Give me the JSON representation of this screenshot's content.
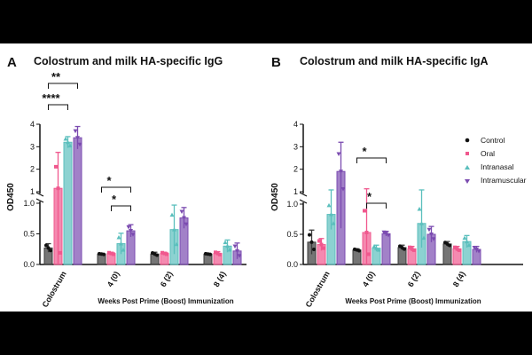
{
  "figure": {
    "panels": [
      {
        "letter": "A",
        "title": "Colostrum and milk HA-specific IgG"
      },
      {
        "letter": "B",
        "title": "Colostrum and milk HA-specific IgA"
      }
    ]
  },
  "colors": {
    "Control": "#3b3b3b",
    "Oral": "#f0588e",
    "Intranasal": "#5bbfbd",
    "Intramuscular": "#7b4bb0"
  },
  "chart_data": [
    {
      "type": "bar",
      "title": "Colostrum and milk HA-specific IgG",
      "ylabel": "OD450",
      "xlabel": "Weeks Post Prime (Boost) Immunization",
      "categories": [
        "Colostrum",
        "4 (0)",
        "6 (2)",
        "8 (4)"
      ],
      "y_broken_axis": {
        "lower": [
          0,
          1
        ],
        "upper": [
          1,
          4
        ],
        "lower_ticks": [
          "0.0",
          "0.5",
          "1.0"
        ],
        "upper_ticks": [
          "1",
          "2",
          "3",
          "4"
        ]
      },
      "series": [
        {
          "name": "Control",
          "values": [
            0.27,
            0.17,
            0.17,
            0.17
          ],
          "errors": [
            0.07,
            0.01,
            0.03,
            0.01
          ]
        },
        {
          "name": "Oral",
          "values": [
            1.15,
            0.18,
            0.18,
            0.18
          ],
          "errors": [
            1.6,
            0.02,
            0.02,
            0.03
          ]
        },
        {
          "name": "Intranasal",
          "values": [
            3.2,
            0.34,
            0.57,
            0.3
          ],
          "errors": [
            0.25,
            0.17,
            0.4,
            0.1
          ]
        },
        {
          "name": "Intramuscular",
          "values": [
            3.4,
            0.55,
            0.76,
            0.22
          ],
          "errors": [
            0.5,
            0.1,
            0.17,
            0.13
          ]
        }
      ],
      "significance": [
        {
          "label": "**",
          "from": "Control",
          "to": "Intramuscular",
          "category": "Colostrum"
        },
        {
          "label": "****",
          "from": "Control",
          "to": "Intranasal",
          "category": "Colostrum"
        },
        {
          "label": "*",
          "from": "Control",
          "to": "Intramuscular",
          "category": "4 (0)"
        },
        {
          "label": "*",
          "from": "Oral",
          "to": "Intramuscular",
          "category": "4 (0)"
        }
      ]
    },
    {
      "type": "bar",
      "title": "Colostrum and milk HA-specific IgA",
      "ylabel": "OD450",
      "xlabel": "Weeks Post Prime (Boost) Immunization",
      "categories": [
        "Colostrum",
        "4 (0)",
        "6 (2)",
        "8 (4)"
      ],
      "y_broken_axis": {
        "lower": [
          0,
          1
        ],
        "upper": [
          1,
          4
        ],
        "lower_ticks": [
          "0.0",
          "0.5",
          "1.0"
        ],
        "upper_ticks": [
          "1",
          "2",
          "3",
          "4"
        ]
      },
      "series": [
        {
          "name": "Control",
          "values": [
            0.37,
            0.24,
            0.28,
            0.34
          ],
          "errors": [
            0.2,
            0.02,
            0.04,
            0.04
          ]
        },
        {
          "name": "Oral",
          "values": [
            0.33,
            0.53,
            0.26,
            0.26
          ],
          "errors": [
            0.1,
            0.6,
            0.04,
            0.04
          ]
        },
        {
          "name": "Intranasal",
          "values": [
            0.83,
            0.27,
            0.68,
            0.38
          ],
          "errors": [
            0.25,
            0.05,
            0.4,
            0.1
          ]
        },
        {
          "name": "Intramuscular",
          "values": [
            1.9,
            0.51,
            0.5,
            0.25
          ],
          "errors": [
            1.3,
            0.04,
            0.13,
            0.05
          ]
        }
      ],
      "significance": [
        {
          "label": "*",
          "from": "Control",
          "to": "Intramuscular",
          "category": "4 (0)"
        },
        {
          "label": "*",
          "from": "Oral",
          "to": "Intramuscular",
          "category": "4 (0)"
        }
      ],
      "legend": [
        "Control",
        "Oral",
        "Intranasal",
        "Intramuscular"
      ],
      "legend_position": "right"
    }
  ]
}
